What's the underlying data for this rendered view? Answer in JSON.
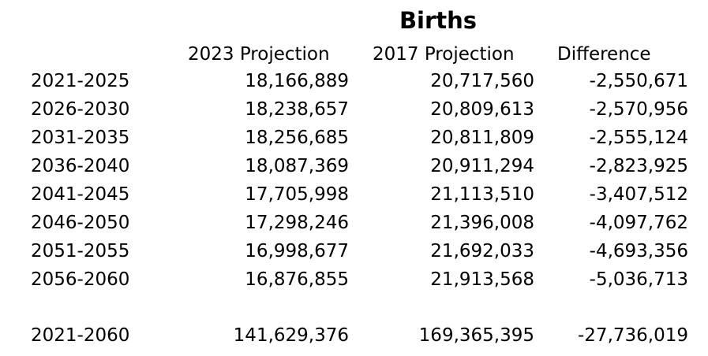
{
  "title": "Births",
  "columns": [
    "",
    "2023 Projection",
    "2017 Projection",
    "Difference"
  ],
  "rows": [
    [
      "2021-2025",
      "18,166,889",
      "20,717,560",
      "-2,550,671"
    ],
    [
      "2026-2030",
      "18,238,657",
      "20,809,613",
      "-2,570,956"
    ],
    [
      "2031-2035",
      "18,256,685",
      "20,811,809",
      "-2,555,124"
    ],
    [
      "2036-2040",
      "18,087,369",
      "20,911,294",
      "-2,823,925"
    ],
    [
      "2041-2045",
      "17,705,998",
      "21,113,510",
      "-3,407,512"
    ],
    [
      "2046-2050",
      "17,298,246",
      "21,396,008",
      "-4,097,762"
    ],
    [
      "2051-2055",
      "16,998,677",
      "21,692,033",
      "-4,693,356"
    ],
    [
      "2056-2060",
      "16,876,855",
      "21,913,568",
      "-5,036,713"
    ]
  ],
  "total": [
    "2021-2060",
    "141,629,376",
    "169,365,395",
    "-27,736,019"
  ]
}
